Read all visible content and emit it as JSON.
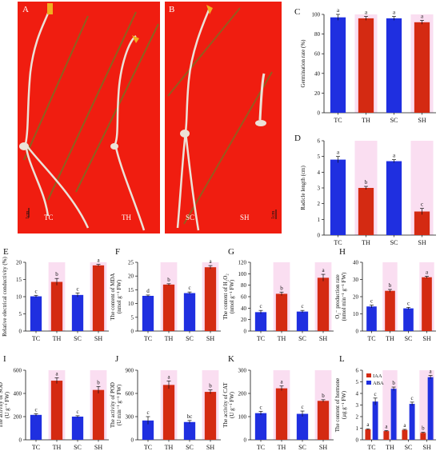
{
  "colors": {
    "blue": "#1f2fe0",
    "red": "#d42a12",
    "shade": "#f6c3e6",
    "photo_bg": "#f01d10",
    "seedling": "#ece2d8"
  },
  "photos": {
    "left": {
      "letter": "A",
      "labels": [
        "TC",
        "TH"
      ],
      "scale": "1cm"
    },
    "right": {
      "letter": "B",
      "labels": [
        "SC",
        "SH"
      ],
      "scale": "1cm"
    }
  },
  "chart_data": [
    {
      "id": "C",
      "type": "bar",
      "categories": [
        "TC",
        "TH",
        "SC",
        "SH"
      ],
      "values": [
        97,
        96,
        96,
        92
      ],
      "errors": [
        3,
        2,
        2,
        2
      ],
      "letters": [
        "a",
        "a",
        "a",
        "a"
      ],
      "ylabel": "Germination rate (%)",
      "ylim": [
        0,
        100
      ],
      "yticks": [
        0,
        20,
        40,
        60,
        80,
        100
      ]
    },
    {
      "id": "D",
      "type": "bar",
      "categories": [
        "TC",
        "TH",
        "SC",
        "SH"
      ],
      "values": [
        4.8,
        3.0,
        4.7,
        1.5
      ],
      "errors": [
        0.2,
        0.1,
        0.1,
        0.2
      ],
      "letters": [
        "a",
        "b",
        "a",
        "c"
      ],
      "ylabel": "Radicle length (cm)",
      "ylim": [
        0,
        6
      ],
      "yticks": [
        0,
        1,
        2,
        3,
        4,
        5,
        6
      ]
    },
    {
      "id": "E",
      "type": "bar",
      "categories": [
        "TC",
        "TH",
        "SC",
        "SH"
      ],
      "values": [
        10.1,
        14.3,
        10.5,
        19.1
      ],
      "errors": [
        0.3,
        1.0,
        0.6,
        0.3
      ],
      "letters": [
        "c",
        "b",
        "c",
        "a"
      ],
      "ylabel": "Relative electrical conductivity (%)",
      "ylim": [
        0,
        20
      ],
      "yticks": [
        0,
        5,
        10,
        15,
        20
      ]
    },
    {
      "id": "F",
      "type": "bar",
      "categories": [
        "TC",
        "TH",
        "SC",
        "SH"
      ],
      "values": [
        12.8,
        16.9,
        13.8,
        23.2
      ],
      "errors": [
        0.3,
        0.3,
        0.4,
        0.6
      ],
      "letters": [
        "d",
        "b",
        "c",
        "a"
      ],
      "ylabel": "The content of MDA",
      "ylabel2": "(nmol g⁻¹ FW)",
      "ylim": [
        0,
        25
      ],
      "yticks": [
        0,
        5,
        10,
        15,
        20,
        25
      ]
    },
    {
      "id": "G",
      "type": "bar",
      "categories": [
        "TC",
        "TH",
        "SC",
        "SH"
      ],
      "values": [
        33,
        65,
        34,
        93
      ],
      "errors": [
        3,
        3,
        2,
        6
      ],
      "letters": [
        "c",
        "b",
        "c",
        "a"
      ],
      "ylabel": "The content of H₂O₂",
      "ylabel2": "(nmol g⁻¹ FW)",
      "ylim": [
        0,
        120
      ],
      "yticks": [
        0,
        20,
        40,
        60,
        80,
        100,
        120
      ]
    },
    {
      "id": "H",
      "type": "bar",
      "categories": [
        "TC",
        "TH",
        "SC",
        "SH"
      ],
      "values": [
        14.3,
        23.4,
        13.2,
        31.3
      ],
      "errors": [
        0.8,
        0.8,
        0.6,
        0.6
      ],
      "letters": [
        "c",
        "b",
        "c",
        "a"
      ],
      "ylabel": "O₂⁻ production rate",
      "ylabel2": "(nmol min⁻¹ g⁻¹ FW)",
      "ylim": [
        0,
        40
      ],
      "yticks": [
        0,
        10,
        20,
        30,
        40
      ]
    },
    {
      "id": "I",
      "type": "bar",
      "categories": [
        "TC",
        "TH",
        "SC",
        "SH"
      ],
      "values": [
        215,
        510,
        200,
        430
      ],
      "errors": [
        10,
        25,
        8,
        30
      ],
      "letters": [
        "c",
        "a",
        "c",
        "b"
      ],
      "ylabel": "The activity of SOD",
      "ylabel2": "(U g⁻¹ FW)",
      "ylim": [
        0,
        600
      ],
      "yticks": [
        0,
        200,
        400,
        600
      ]
    },
    {
      "id": "J",
      "type": "bar",
      "categories": [
        "TC",
        "TH",
        "SC",
        "SH"
      ],
      "values": [
        250,
        710,
        230,
        620
      ],
      "errors": [
        50,
        50,
        20,
        25
      ],
      "letters": [
        "c",
        "a",
        "bc",
        "b"
      ],
      "ylabel": "The activity of POD",
      "ylabel2": "(U min⁻¹ g⁻¹ FW)",
      "ylim": [
        0,
        900
      ],
      "yticks": [
        0,
        300,
        600,
        900
      ]
    },
    {
      "id": "K",
      "type": "bar",
      "categories": [
        "TC",
        "TH",
        "SC",
        "SH"
      ],
      "values": [
        115,
        222,
        112,
        168
      ],
      "errors": [
        8,
        10,
        12,
        5
      ],
      "letters": [
        "c",
        "a",
        "c",
        "b"
      ],
      "ylabel": "The activity of CAT",
      "ylabel2": "(U g⁻¹ FW)",
      "ylim": [
        0,
        300
      ],
      "yticks": [
        0,
        100,
        200,
        300
      ]
    },
    {
      "id": "L",
      "type": "bar",
      "categories": [
        "TC",
        "TH",
        "SC",
        "SH"
      ],
      "series": [
        {
          "name": "IAA",
          "values": [
            0.9,
            0.75,
            0.85,
            0.6
          ],
          "errors": [
            0.05,
            0.05,
            0.05,
            0.05
          ],
          "letters": [
            "a",
            "a",
            "a",
            "b"
          ]
        },
        {
          "name": "ABA",
          "values": [
            3.3,
            4.4,
            3.1,
            5.4
          ],
          "errors": [
            0.3,
            0.15,
            0.15,
            0.15
          ],
          "letters": [
            "c",
            "b",
            "c",
            "a"
          ]
        }
      ],
      "ylabel": "The content of hormone",
      "ylabel2": "(μg g⁻¹ FW)",
      "ylim": [
        0,
        6
      ],
      "yticks": [
        0,
        1,
        2,
        3,
        4,
        5,
        6
      ],
      "legend": "top-left"
    }
  ]
}
